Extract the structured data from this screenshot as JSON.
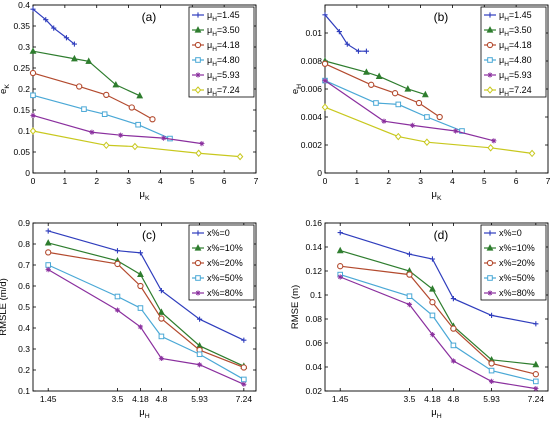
{
  "chart_data": [
    {
      "panel": "(a)",
      "type": "line",
      "xlabel_main": "μ",
      "xlabel_sub": "K",
      "ylabel_main": "e",
      "ylabel_sub": "K",
      "xlim": [
        0,
        7
      ],
      "ylim": [
        0,
        0.4
      ],
      "xticks": [
        0,
        1,
        2,
        3,
        4,
        5,
        6,
        7
      ],
      "xtick_labels": [
        "0",
        "1",
        "2",
        "3",
        "4",
        "5",
        "6",
        "7"
      ],
      "yticks": [
        0,
        0.05,
        0.1,
        0.15,
        0.2,
        0.25,
        0.3,
        0.35,
        0.4
      ],
      "ytick_labels": [
        "0",
        "0.05",
        "0.1",
        "0.15",
        "0.2",
        "0.25",
        "0.3",
        "0.35",
        "0.4"
      ],
      "legend": "top-right",
      "series": [
        {
          "name_main": "μ",
          "name_sub": "H",
          "name_rest": "=1.45",
          "color": "#2f3dbd",
          "marker": "plus",
          "x": [
            0,
            0.4,
            0.65,
            1.05,
            1.3
          ],
          "y": [
            0.39,
            0.365,
            0.345,
            0.322,
            0.307
          ]
        },
        {
          "name_main": "μ",
          "name_sub": "H",
          "name_rest": "=3.50",
          "color": "#2e7d2e",
          "marker": "triangle",
          "x": [
            0,
            1.3,
            1.75,
            2.6,
            3.35
          ],
          "y": [
            0.29,
            0.272,
            0.266,
            0.21,
            0.184
          ]
        },
        {
          "name_main": "μ",
          "name_sub": "H",
          "name_rest": "=4.18",
          "color": "#b34a2e",
          "marker": "circle",
          "x": [
            0,
            1.45,
            2.3,
            3.1,
            3.75
          ],
          "y": [
            0.238,
            0.206,
            0.186,
            0.156,
            0.128
          ]
        },
        {
          "name_main": "μ",
          "name_sub": "H",
          "name_rest": "=4.80",
          "color": "#4aa8d6",
          "marker": "square",
          "x": [
            0,
            1.6,
            2.25,
            3.3,
            4.3
          ],
          "y": [
            0.185,
            0.152,
            0.14,
            0.115,
            0.082
          ]
        },
        {
          "name_main": "μ",
          "name_sub": "H",
          "name_rest": "=5.93",
          "color": "#8a2f9e",
          "marker": "star",
          "x": [
            0,
            1.85,
            2.75,
            4.1,
            5.3
          ],
          "y": [
            0.137,
            0.097,
            0.09,
            0.083,
            0.07
          ]
        },
        {
          "name_main": "μ",
          "name_sub": "H",
          "name_rest": "=7.24",
          "color": "#c8c81e",
          "marker": "diamond",
          "x": [
            0,
            2.3,
            3.2,
            5.2,
            6.5
          ],
          "y": [
            0.1,
            0.066,
            0.063,
            0.047,
            0.039
          ]
        }
      ]
    },
    {
      "panel": "(b)",
      "type": "line",
      "xlabel_main": "μ",
      "xlabel_sub": "K",
      "ylabel_main": "e",
      "ylabel_sub": "H",
      "xlim": [
        0,
        7
      ],
      "ylim": [
        0,
        0.012
      ],
      "xticks": [
        0,
        1,
        2,
        3,
        4,
        5,
        6,
        7
      ],
      "xtick_labels": [
        "0",
        "1",
        "2",
        "3",
        "4",
        "5",
        "6",
        "7"
      ],
      "yticks": [
        0,
        0.002,
        0.004,
        0.006,
        0.008,
        0.01
      ],
      "ytick_labels": [
        "0",
        "0.002",
        "0.004",
        "0.006",
        "0.008",
        "0.01"
      ],
      "legend": "top-right",
      "series": [
        {
          "name_main": "μ",
          "name_sub": "H",
          "name_rest": "=1.45",
          "color": "#2f3dbd",
          "marker": "plus",
          "x": [
            0,
            0.45,
            0.7,
            1.05,
            1.3
          ],
          "y": [
            0.0113,
            0.0101,
            0.0092,
            0.0087,
            0.0087
          ]
        },
        {
          "name_main": "μ",
          "name_sub": "H",
          "name_rest": "=3.50",
          "color": "#2e7d2e",
          "marker": "triangle",
          "x": [
            0,
            1.3,
            1.7,
            2.6,
            3.15
          ],
          "y": [
            0.008,
            0.0072,
            0.0069,
            0.006,
            0.0056
          ]
        },
        {
          "name_main": "μ",
          "name_sub": "H",
          "name_rest": "=4.18",
          "color": "#b34a2e",
          "marker": "circle",
          "x": [
            0,
            1.45,
            2.2,
            2.95,
            3.6
          ],
          "y": [
            0.0078,
            0.0063,
            0.0057,
            0.005,
            0.004
          ]
        },
        {
          "name_main": "μ",
          "name_sub": "H",
          "name_rest": "=4.80",
          "color": "#4aa8d6",
          "marker": "square",
          "x": [
            0,
            1.6,
            2.3,
            3.2,
            4.3
          ],
          "y": [
            0.0066,
            0.005,
            0.0049,
            0.004,
            0.003
          ]
        },
        {
          "name_main": "μ",
          "name_sub": "H",
          "name_rest": "=5.93",
          "color": "#8a2f9e",
          "marker": "star",
          "x": [
            0,
            1.85,
            2.75,
            4.1,
            5.3
          ],
          "y": [
            0.0066,
            0.0037,
            0.0034,
            0.003,
            0.0023
          ]
        },
        {
          "name_main": "μ",
          "name_sub": "H",
          "name_rest": "=7.24",
          "color": "#c8c81e",
          "marker": "diamond",
          "x": [
            0,
            2.3,
            3.2,
            5.2,
            6.5
          ],
          "y": [
            0.0047,
            0.0026,
            0.0022,
            0.0018,
            0.0014
          ]
        }
      ]
    },
    {
      "panel": "(c)",
      "type": "line",
      "xlabel_main": "μ",
      "xlabel_sub": "H",
      "ylabel_main": "RMSLE (m/d)",
      "ylabel_sub": "",
      "xlim": [
        1,
        7.6
      ],
      "ylim": [
        0.1,
        0.9
      ],
      "xticks": [
        1.45,
        3.5,
        4.18,
        4.8,
        5.93,
        7.24
      ],
      "xtick_labels": [
        "1.45",
        "3.5",
        "4.18",
        "4.8",
        "5.93",
        "7.24"
      ],
      "yticks": [
        0.1,
        0.2,
        0.3,
        0.4,
        0.5,
        0.6,
        0.7,
        0.8,
        0.9
      ],
      "ytick_labels": [
        "0.1",
        "0.2",
        "0.3",
        "0.4",
        "0.5",
        "0.6",
        "0.7",
        "0.8",
        "0.9"
      ],
      "legend": "top-right",
      "series": [
        {
          "name_main": "x%=0",
          "name_sub": "",
          "name_rest": "",
          "color": "#2f3dbd",
          "marker": "plus",
          "x": [
            1.45,
            3.5,
            4.18,
            4.8,
            5.93,
            7.24
          ],
          "y": [
            0.862,
            0.768,
            0.758,
            0.578,
            0.442,
            0.342
          ]
        },
        {
          "name_main": "x%=10%",
          "name_sub": "",
          "name_rest": "",
          "color": "#2e7d2e",
          "marker": "triangle",
          "x": [
            1.45,
            3.5,
            4.18,
            4.8,
            5.93,
            7.24
          ],
          "y": [
            0.805,
            0.72,
            0.655,
            0.475,
            0.315,
            0.218
          ]
        },
        {
          "name_main": "x%=20%",
          "name_sub": "",
          "name_rest": "",
          "color": "#b34a2e",
          "marker": "circle",
          "x": [
            1.45,
            3.5,
            4.18,
            4.8,
            5.93,
            7.24
          ],
          "y": [
            0.76,
            0.705,
            0.6,
            0.445,
            0.295,
            0.212
          ]
        },
        {
          "name_main": "x%=50%",
          "name_sub": "",
          "name_rest": "",
          "color": "#4aa8d6",
          "marker": "square",
          "x": [
            1.45,
            3.5,
            4.18,
            4.8,
            5.93,
            7.24
          ],
          "y": [
            0.7,
            0.55,
            0.495,
            0.36,
            0.275,
            0.155
          ]
        },
        {
          "name_main": "x%=80%",
          "name_sub": "",
          "name_rest": "",
          "color": "#8a2f9e",
          "marker": "star",
          "x": [
            1.45,
            3.5,
            4.18,
            4.8,
            5.93,
            7.24
          ],
          "y": [
            0.678,
            0.485,
            0.405,
            0.255,
            0.225,
            0.132
          ]
        }
      ]
    },
    {
      "panel": "(d)",
      "type": "line",
      "xlabel_main": "μ",
      "xlabel_sub": "H",
      "ylabel_main": "RMSE (m)",
      "ylabel_sub": "",
      "xlim": [
        1,
        7.6
      ],
      "ylim": [
        0.02,
        0.16
      ],
      "xticks": [
        1.45,
        3.5,
        4.18,
        4.8,
        5.93,
        7.24
      ],
      "xtick_labels": [
        "1.45",
        "3.5",
        "4.18",
        "4.8",
        "5.93",
        "7.24"
      ],
      "yticks": [
        0.02,
        0.04,
        0.06,
        0.08,
        0.1,
        0.12,
        0.14,
        0.16
      ],
      "ytick_labels": [
        "0.02",
        "0.04",
        "0.06",
        "0.08",
        "0.1",
        "0.12",
        "0.14",
        "0.16"
      ],
      "legend": "top-right",
      "series": [
        {
          "name_main": "x%=0",
          "name_sub": "",
          "name_rest": "",
          "color": "#2f3dbd",
          "marker": "plus",
          "x": [
            1.45,
            3.5,
            4.18,
            4.8,
            5.93,
            7.24
          ],
          "y": [
            0.152,
            0.134,
            0.13,
            0.097,
            0.083,
            0.076
          ]
        },
        {
          "name_main": "x%=10%",
          "name_sub": "",
          "name_rest": "",
          "color": "#2e7d2e",
          "marker": "triangle",
          "x": [
            1.45,
            3.5,
            4.18,
            4.8,
            5.93,
            7.24
          ],
          "y": [
            0.137,
            0.12,
            0.105,
            0.074,
            0.046,
            0.042
          ]
        },
        {
          "name_main": "x%=20%",
          "name_sub": "",
          "name_rest": "",
          "color": "#b34a2e",
          "marker": "circle",
          "x": [
            1.45,
            3.5,
            4.18,
            4.8,
            5.93,
            7.24
          ],
          "y": [
            0.124,
            0.117,
            0.094,
            0.072,
            0.043,
            0.034
          ]
        },
        {
          "name_main": "x%=50%",
          "name_sub": "",
          "name_rest": "",
          "color": "#4aa8d6",
          "marker": "square",
          "x": [
            1.45,
            3.5,
            4.18,
            4.8,
            5.93,
            7.24
          ],
          "y": [
            0.117,
            0.099,
            0.083,
            0.058,
            0.037,
            0.028
          ]
        },
        {
          "name_main": "x%=80%",
          "name_sub": "",
          "name_rest": "",
          "color": "#8a2f9e",
          "marker": "star",
          "x": [
            1.45,
            3.5,
            4.18,
            4.8,
            5.93,
            7.24
          ],
          "y": [
            0.115,
            0.092,
            0.067,
            0.045,
            0.028,
            0.022
          ]
        }
      ]
    }
  ]
}
